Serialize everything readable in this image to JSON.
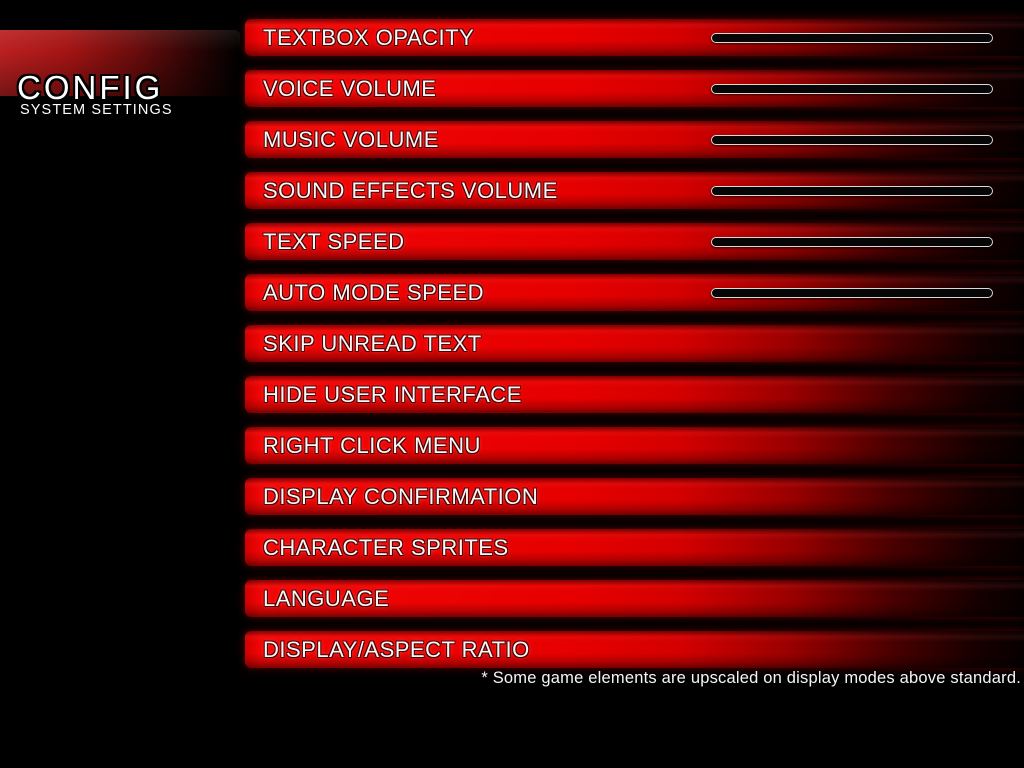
{
  "header": {
    "title": "CONFIG",
    "subtitle": "SYSTEM SETTINGS"
  },
  "settings": [
    {
      "id": "textbox-opacity",
      "label": "TEXTBOX OPACITY",
      "control": "slider"
    },
    {
      "id": "voice-volume",
      "label": "VOICE VOLUME",
      "control": "slider"
    },
    {
      "id": "music-volume",
      "label": "MUSIC VOLUME",
      "control": "slider"
    },
    {
      "id": "sound-effects-volume",
      "label": "SOUND EFFECTS VOLUME",
      "control": "slider"
    },
    {
      "id": "text-speed",
      "label": "TEXT SPEED",
      "control": "slider"
    },
    {
      "id": "auto-mode-speed",
      "label": "AUTO MODE SPEED",
      "control": "slider"
    },
    {
      "id": "skip-unread-text",
      "label": "SKIP UNREAD TEXT",
      "control": "none"
    },
    {
      "id": "hide-user-interface",
      "label": "HIDE USER INTERFACE",
      "control": "none"
    },
    {
      "id": "right-click-menu",
      "label": "RIGHT CLICK MENU",
      "control": "none"
    },
    {
      "id": "display-confirmation",
      "label": "DISPLAY CONFIRMATION",
      "control": "none"
    },
    {
      "id": "character-sprites",
      "label": "CHARACTER SPRITES",
      "control": "none"
    },
    {
      "id": "language",
      "label": "LANGUAGE",
      "control": "none"
    },
    {
      "id": "display-aspect-ratio",
      "label": "DISPLAY/ASPECT RATIO",
      "control": "none"
    }
  ],
  "footnote": "* Some game elements are upscaled on display modes above standard.",
  "colors": {
    "background": "#000000",
    "bar_red": "#e60000",
    "bar_fade": "#070000",
    "header_red": "#a51414",
    "slider_border": "#d9d9d9",
    "slider_fill": "#060606",
    "text": "#f8f8f8"
  }
}
